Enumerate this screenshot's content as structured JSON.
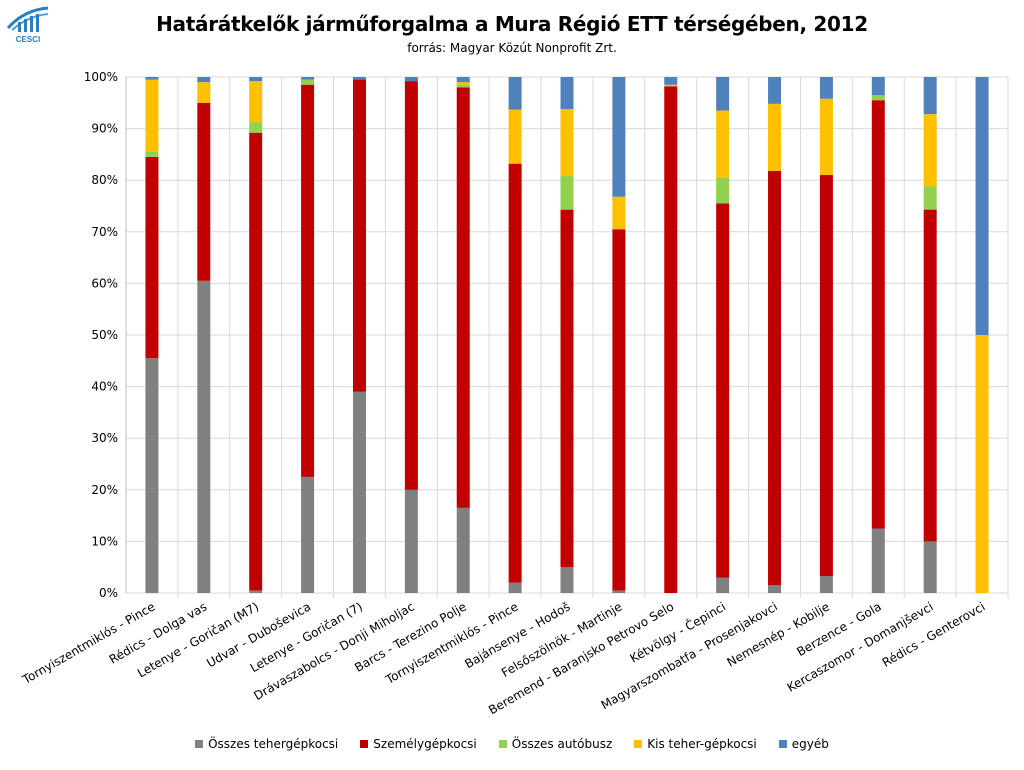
{
  "header": {
    "title": "Határátkelők járműforgalma a Mura Régió ETT térségében, 2012",
    "subtitle": "forrás: Magyar Közút Nonprofit Zrt.",
    "logo_text": "CESCI"
  },
  "chart_data": {
    "type": "bar",
    "stacked": true,
    "percent": true,
    "title": "Határátkelők járműforgalma a Mura Régió ETT térségében, 2012",
    "subtitle": "forrás: Magyar Közút Nonprofit Zrt.",
    "ylim": [
      0,
      100
    ],
    "yticks": [
      "0%",
      "10%",
      "20%",
      "30%",
      "40%",
      "50%",
      "60%",
      "70%",
      "80%",
      "90%",
      "100%"
    ],
    "grid": true,
    "legend_position": "bottom",
    "categories": [
      "Tornyiszentmiklós - Pince",
      "Rédics - Dolga vas",
      "Letenye - Goričan (M7)",
      "Udvar - Duboševica",
      "Letenye - Goričan (7)",
      "Drávaszabolcs - Donji Miholjac",
      "Barcs - Terezino Polje",
      "Tornyiszentmiklós - Pince",
      "Bajánsenye - Hodoš",
      "Felsőszölnök - Martinje",
      "Beremend - Baranjsko Petrovo Selo",
      "Kétvölgy - Čepinci",
      "Magyarszombatfa - Prosenjakovci",
      "Nemesnép - Kobilje",
      "Berzence - Gola",
      "Kercaszomor - Domanjševci",
      "Rédics - Genterovci"
    ],
    "series": [
      {
        "name": "Összes tehergépkocsi",
        "color": "#808080",
        "values": [
          45.5,
          60.5,
          0.5,
          22.5,
          39,
          20,
          16.5,
          2,
          5,
          0.5,
          0,
          3,
          1.5,
          3.3,
          12.5,
          10,
          0
        ]
      },
      {
        "name": "Személygépkocsi",
        "color": "#c00000",
        "values": [
          39,
          34.5,
          88.7,
          76,
          60.5,
          79.2,
          81.5,
          81.2,
          69.3,
          70,
          98.2,
          72.5,
          80.3,
          77.7,
          83,
          64.3,
          0
        ]
      },
      {
        "name": "Összes autóbusz",
        "color": "#92d050",
        "values": [
          1,
          0,
          2,
          1,
          0,
          0,
          0.5,
          0,
          6.5,
          0,
          0,
          5,
          0,
          0,
          1,
          4.5,
          0
        ]
      },
      {
        "name": "Kis teher-gépkocsi",
        "color": "#ffc000",
        "values": [
          14,
          4,
          8,
          0,
          0,
          0,
          0.5,
          10.5,
          13,
          6.3,
          0.3,
          13,
          13,
          14.8,
          0,
          14,
          50
        ]
      },
      {
        "name": "egyéb",
        "color": "#4f81bd",
        "values": [
          0.5,
          1,
          0.8,
          0.5,
          0.5,
          0.8,
          1,
          6.3,
          6.2,
          23.2,
          1.5,
          6.5,
          5.2,
          4.2,
          3.5,
          7.2,
          50
        ]
      }
    ]
  }
}
